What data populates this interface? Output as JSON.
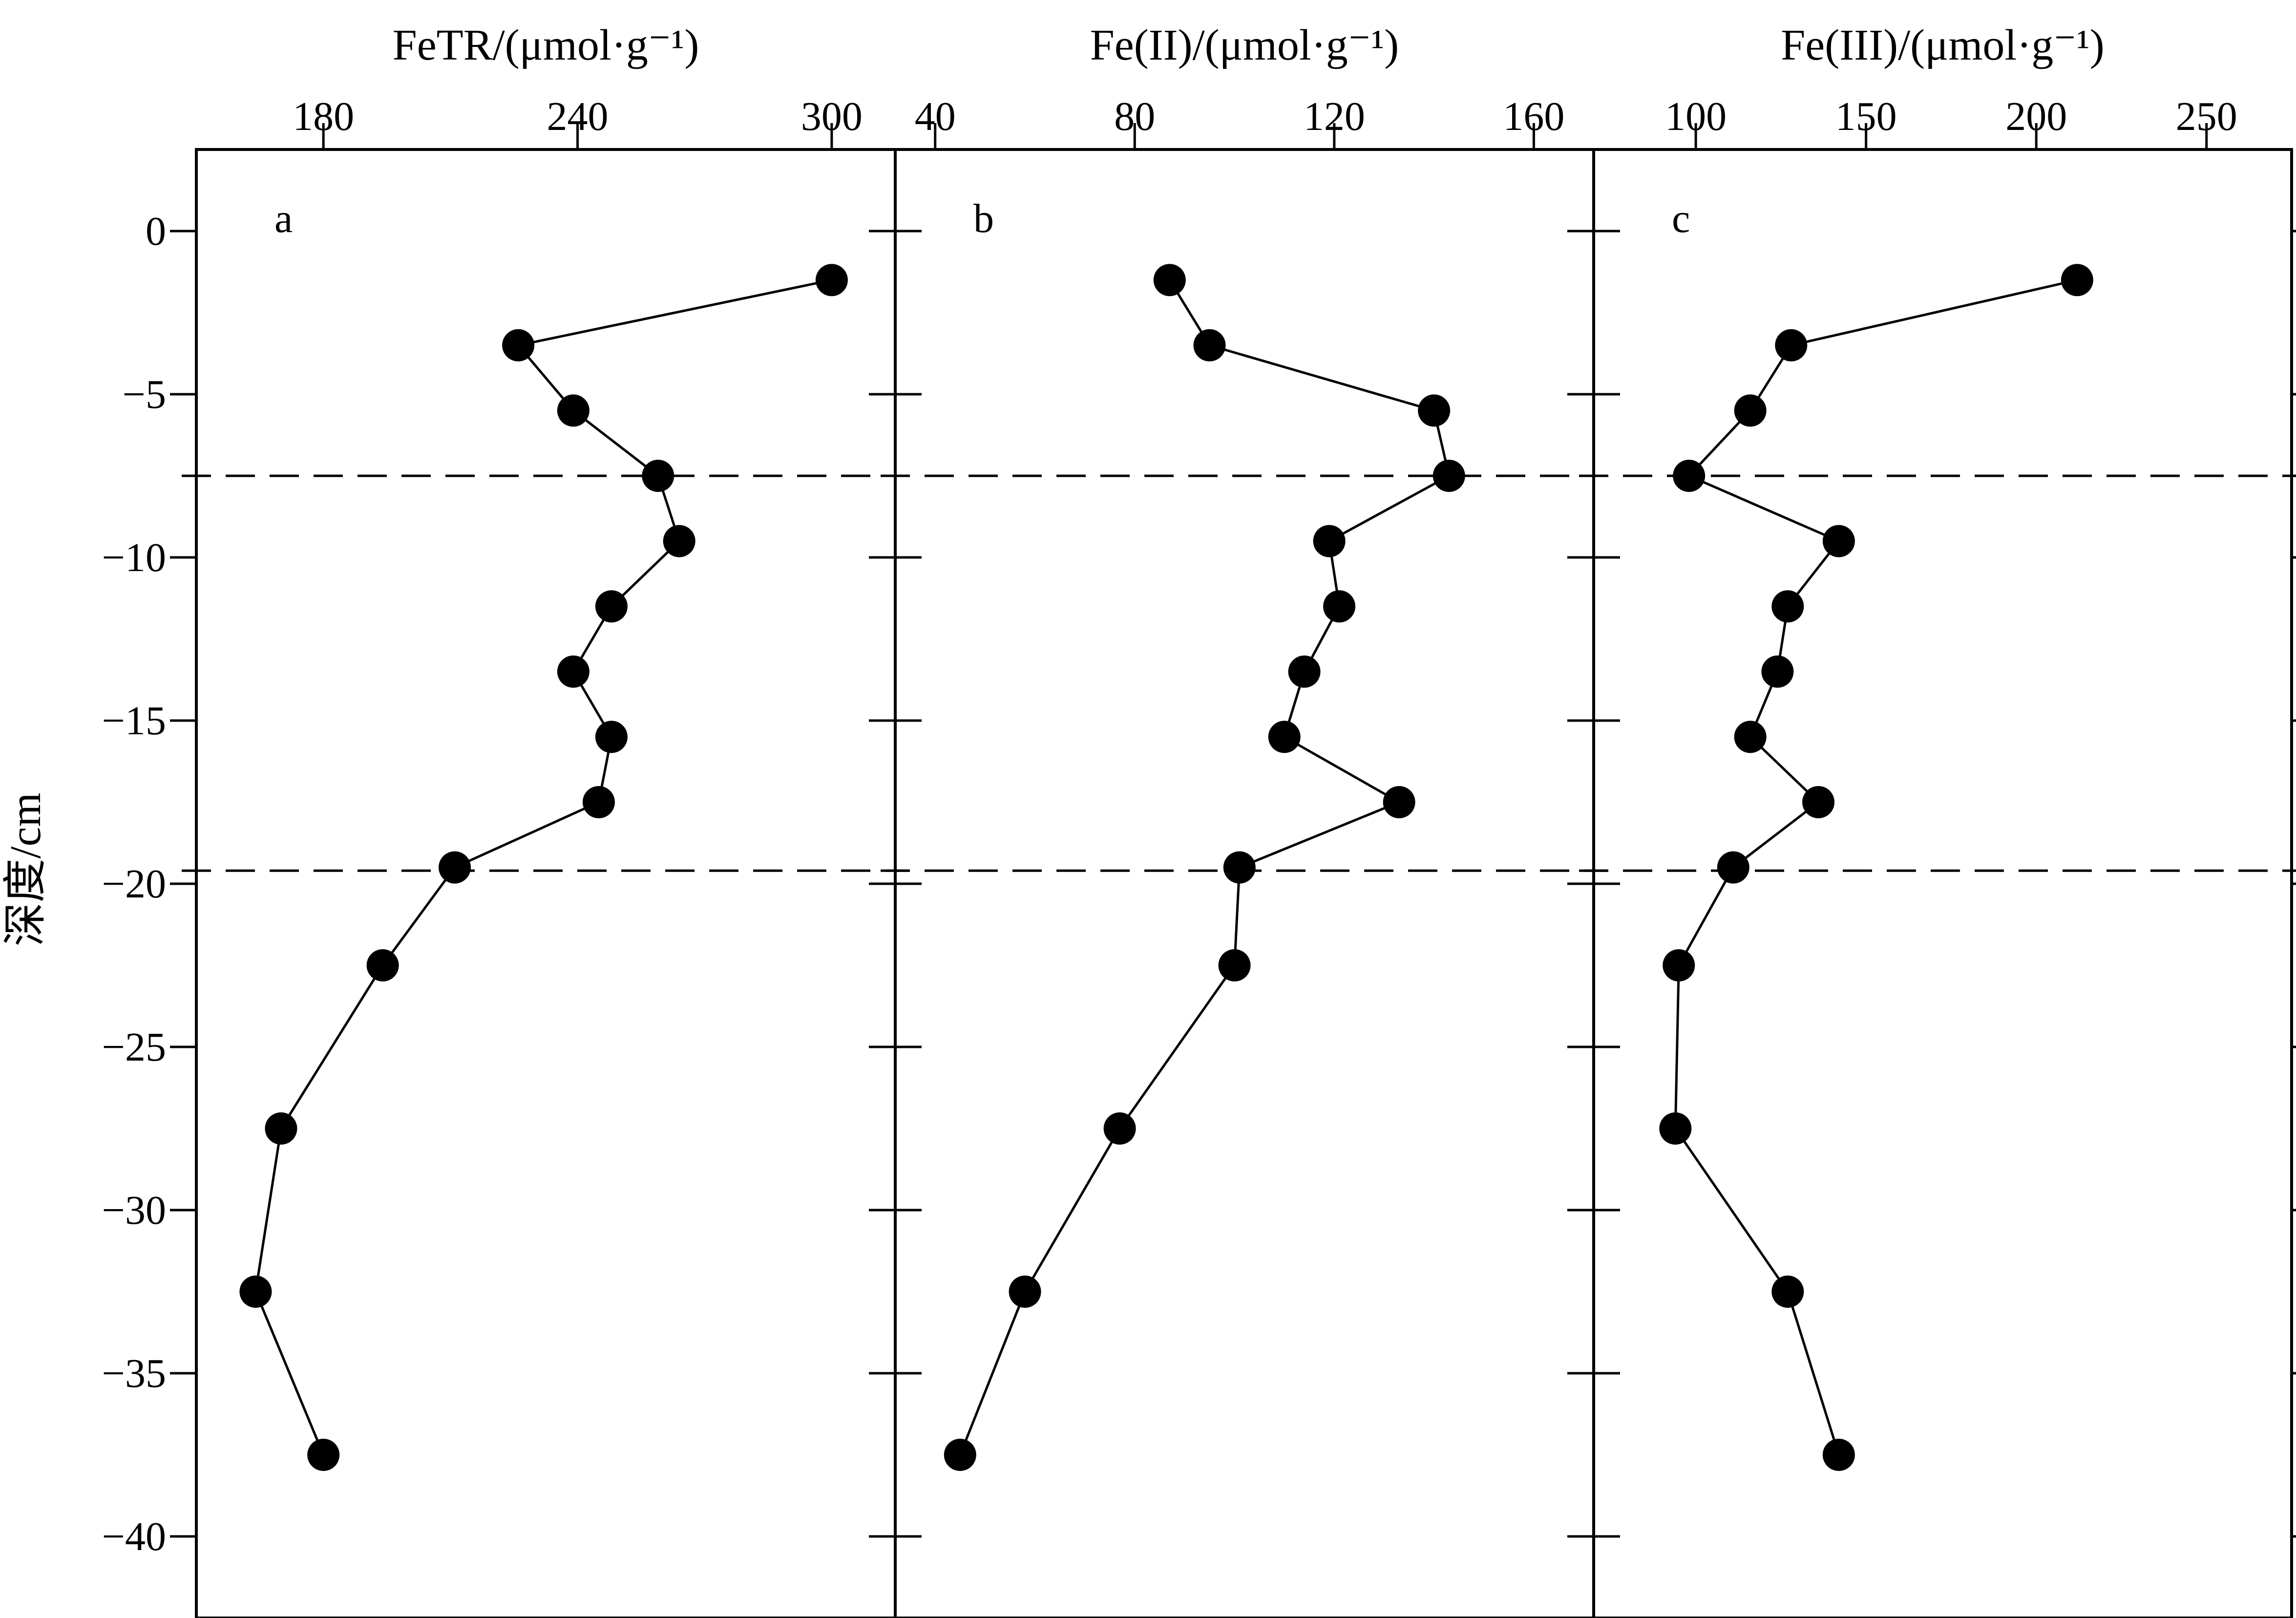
{
  "figure": {
    "y_axis_label": "深度/cm"
  },
  "chart_data": [
    {
      "type": "scatter",
      "panel": "a",
      "title": "",
      "xlabel": "FeTR/(μmol·g⁻¹)",
      "ylabel": "深度/cm",
      "xlim": [
        150,
        315
      ],
      "ylim": [
        -42.5,
        2.5
      ],
      "xticks": [
        180,
        240,
        300
      ],
      "yticks": [
        0,
        -5,
        -10,
        -15,
        -20,
        -25,
        -30,
        -35,
        -40
      ],
      "x_axis_position": "top",
      "grid": false,
      "series": [
        {
          "x": [
            300,
            226,
            239,
            259,
            264,
            248,
            239,
            248,
            245,
            211,
            194,
            170,
            164,
            180
          ],
          "y": [
            -1.5,
            -3.5,
            -5.5,
            -7.5,
            -9.5,
            -11.5,
            -13.5,
            -15.5,
            -17.5,
            -19.5,
            -22.5,
            -27.5,
            -32.5,
            -37.5
          ]
        }
      ],
      "reference_lines_y": [
        -7.5,
        -19.6
      ]
    },
    {
      "type": "scatter",
      "panel": "b",
      "title": "",
      "xlabel": "Fe(II)/(μmol·g⁻¹)",
      "ylabel": "",
      "xlim": [
        32,
        172
      ],
      "ylim": [
        -42.5,
        2.5
      ],
      "xticks": [
        40,
        80,
        120,
        160
      ],
      "yticks": [
        0,
        -5,
        -10,
        -15,
        -20,
        -25,
        -30,
        -35,
        -40
      ],
      "x_axis_position": "top",
      "grid": false,
      "series": [
        {
          "x": [
            87,
            95,
            140,
            143,
            119,
            121,
            114,
            110,
            133,
            101,
            100,
            77,
            58,
            45
          ],
          "y": [
            -1.5,
            -3.5,
            -5.5,
            -7.5,
            -9.5,
            -11.5,
            -13.5,
            -15.5,
            -17.5,
            -19.5,
            -22.5,
            -27.5,
            -32.5,
            -37.5
          ]
        }
      ],
      "reference_lines_y": [
        -7.5,
        -19.6
      ]
    },
    {
      "type": "scatter",
      "panel": "c",
      "title": "",
      "xlabel": "Fe(III)/(μmol·g⁻¹)",
      "ylabel": "",
      "xlim": [
        70,
        275
      ],
      "ylim": [
        -42.5,
        2.5
      ],
      "xticks": [
        100,
        150,
        200,
        250
      ],
      "yticks": [
        0,
        -5,
        -10,
        -15,
        -20,
        -25,
        -30,
        -35,
        -40
      ],
      "x_axis_position": "top",
      "grid": false,
      "series": [
        {
          "x": [
            212,
            128,
            116,
            98,
            142,
            127,
            124,
            116,
            136,
            111,
            95,
            94,
            127,
            142
          ],
          "y": [
            -1.5,
            -3.5,
            -5.5,
            -7.5,
            -9.5,
            -11.5,
            -13.5,
            -15.5,
            -17.5,
            -19.5,
            -22.5,
            -27.5,
            -32.5,
            -37.5
          ]
        }
      ],
      "reference_lines_y": [
        -7.5,
        -19.6
      ]
    }
  ],
  "y_tick_labels": [
    "0",
    "−5",
    "−10",
    "−15",
    "−20",
    "−25",
    "−30",
    "−35",
    "−40"
  ],
  "x_tick_labels": [
    [
      "180",
      "240",
      "300"
    ],
    [
      "40",
      "80",
      "120",
      "160"
    ],
    [
      "100",
      "150",
      "200",
      "250"
    ]
  ]
}
